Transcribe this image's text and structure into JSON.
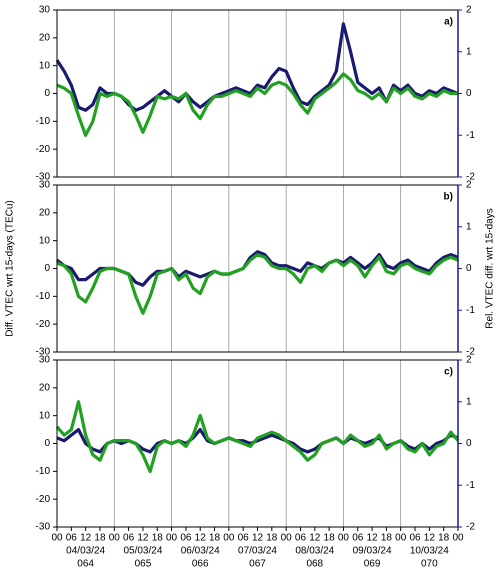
{
  "chart_data": [
    {
      "type": "line",
      "panel_label": "a)",
      "x": [
        0,
        3,
        6,
        9,
        12,
        15,
        18,
        21,
        24,
        27,
        30,
        33,
        36,
        39,
        42,
        45,
        48,
        51,
        54,
        57,
        60,
        63,
        66,
        69,
        72,
        75,
        78,
        81,
        84,
        87,
        90,
        93,
        96,
        99,
        102,
        105,
        108,
        111,
        114,
        117,
        120,
        123,
        126,
        129,
        132,
        135,
        138,
        141,
        144,
        147,
        150,
        153,
        156,
        159,
        162,
        165,
        168
      ],
      "series": [
        {
          "name": "VTEC diff",
          "color": "#1a1a6e",
          "values": [
            12,
            8,
            3,
            -5,
            -6,
            -4,
            2,
            0,
            0,
            -1,
            -4,
            -6,
            -5,
            -3,
            -1,
            1,
            -1,
            -3,
            0,
            -3,
            -5,
            -3,
            -1,
            0,
            1,
            2,
            1,
            0,
            3,
            2,
            6,
            9,
            8,
            2,
            -3,
            -4,
            -1,
            1,
            3,
            8,
            25,
            15,
            4,
            2,
            0,
            2,
            -3,
            3,
            1,
            3,
            0,
            -1,
            1,
            0,
            2,
            1,
            0
          ]
        },
        {
          "name": "Rel. VTEC diff",
          "color": "#22a022",
          "axis": "y2",
          "values": [
            0.2,
            0.13,
            0,
            -0.53,
            -1,
            -0.67,
            0,
            -0.07,
            0,
            -0.07,
            -0.2,
            -0.53,
            -0.93,
            -0.53,
            -0.07,
            -0.13,
            -0.07,
            -0.13,
            0,
            -0.4,
            -0.6,
            -0.27,
            -0.07,
            -0.07,
            0,
            0.07,
            0,
            -0.07,
            0.13,
            0,
            0.2,
            0.27,
            0.2,
            0,
            -0.27,
            -0.47,
            -0.13,
            0,
            0.13,
            0.27,
            0.47,
            0.33,
            0.07,
            0,
            -0.13,
            0,
            -0.2,
            0.13,
            0,
            0.13,
            -0.07,
            -0.13,
            0,
            -0.07,
            0.07,
            0,
            0
          ]
        }
      ],
      "ylim": [
        -30,
        30
      ],
      "yticks": [
        -30,
        -20,
        -10,
        0,
        10,
        20,
        30
      ],
      "y2lim": [
        -2,
        2
      ],
      "y2ticks": [
        -2,
        -1,
        0,
        1,
        2
      ],
      "xlim": [
        0,
        168
      ],
      "day_lines": [
        24,
        48,
        72,
        96,
        120,
        144
      ]
    },
    {
      "type": "line",
      "panel_label": "b)",
      "ylabel": "Diff. VTEC wrt 15-days (TECu)",
      "y2label": "Rel. VTEC diff. wrt 15-days",
      "x": [
        0,
        3,
        6,
        9,
        12,
        15,
        18,
        21,
        24,
        27,
        30,
        33,
        36,
        39,
        42,
        45,
        48,
        51,
        54,
        57,
        60,
        63,
        66,
        69,
        72,
        75,
        78,
        81,
        84,
        87,
        90,
        93,
        96,
        99,
        102,
        105,
        108,
        111,
        114,
        117,
        120,
        123,
        126,
        129,
        132,
        135,
        138,
        141,
        144,
        147,
        150,
        153,
        156,
        159,
        162,
        165,
        168
      ],
      "series": [
        {
          "name": "VTEC diff",
          "color": "#1a1a6e",
          "values": [
            3,
            1,
            0,
            -4,
            -4,
            -2,
            0,
            0,
            0,
            -1,
            -2,
            -5,
            -6,
            -3,
            -1,
            -1,
            0,
            -3,
            -1,
            -2,
            -3,
            -2,
            -1,
            -2,
            -2,
            -1,
            0,
            4,
            6,
            5,
            2,
            1,
            1,
            0,
            -1,
            2,
            1,
            0,
            2,
            3,
            2,
            4,
            2,
            0,
            2,
            5,
            1,
            0,
            2,
            3,
            1,
            0,
            -1,
            2,
            4,
            5,
            4
          ]
        },
        {
          "name": "Rel. VTEC diff",
          "color": "#22a022",
          "axis": "y2",
          "values": [
            0.13,
            0.07,
            -0.13,
            -0.67,
            -0.8,
            -0.47,
            -0.07,
            0,
            0,
            -0.07,
            -0.13,
            -0.67,
            -1.07,
            -0.67,
            -0.13,
            -0.07,
            0,
            -0.27,
            -0.13,
            -0.47,
            -0.6,
            -0.2,
            -0.07,
            -0.13,
            -0.13,
            -0.07,
            0,
            0.2,
            0.33,
            0.27,
            0.07,
            0,
            0,
            -0.13,
            -0.33,
            0,
            0.07,
            -0.07,
            0.13,
            0.2,
            0.07,
            0.2,
            0.07,
            -0.2,
            0.07,
            0.27,
            -0.07,
            -0.13,
            0.07,
            0.13,
            0,
            -0.07,
            -0.13,
            0.07,
            0.2,
            0.27,
            0.2
          ]
        }
      ],
      "ylim": [
        -30,
        30
      ],
      "yticks": [
        -30,
        -20,
        -10,
        0,
        10,
        20,
        30
      ],
      "y2lim": [
        -2,
        2
      ],
      "y2ticks": [
        -2,
        -1,
        0,
        1,
        2
      ],
      "xlim": [
        0,
        168
      ],
      "day_lines": [
        24,
        48,
        72,
        96,
        120,
        144
      ]
    },
    {
      "type": "line",
      "panel_label": "c)",
      "x": [
        0,
        3,
        6,
        9,
        12,
        15,
        18,
        21,
        24,
        27,
        30,
        33,
        36,
        39,
        42,
        45,
        48,
        51,
        54,
        57,
        60,
        63,
        66,
        69,
        72,
        75,
        78,
        81,
        84,
        87,
        90,
        93,
        96,
        99,
        102,
        105,
        108,
        111,
        114,
        117,
        120,
        123,
        126,
        129,
        132,
        135,
        138,
        141,
        144,
        147,
        150,
        153,
        156,
        159,
        162,
        165,
        168
      ],
      "series": [
        {
          "name": "VTEC diff",
          "color": "#1a1a6e",
          "values": [
            2,
            1,
            3,
            5,
            0,
            -2,
            -3,
            0,
            1,
            0,
            1,
            0,
            -2,
            -3,
            0,
            1,
            0,
            1,
            0,
            2,
            5,
            1,
            0,
            1,
            2,
            1,
            1,
            0,
            1,
            2,
            3,
            2,
            1,
            0,
            -2,
            -3,
            -2,
            0,
            1,
            2,
            0,
            2,
            1,
            0,
            1,
            2,
            -1,
            0,
            1,
            -1,
            -2,
            0,
            -2,
            0,
            1,
            3,
            2
          ]
        },
        {
          "name": "Rel. VTEC diff",
          "color": "#22a022",
          "axis": "y2",
          "values": [
            0.4,
            0.2,
            0.33,
            1,
            0.2,
            -0.27,
            -0.4,
            0,
            0.07,
            0.07,
            0.07,
            0,
            -0.27,
            -0.67,
            -0.07,
            0.07,
            0,
            0.07,
            -0.07,
            0.2,
            0.67,
            0.13,
            0,
            0.07,
            0.13,
            0.07,
            0,
            -0.07,
            0.13,
            0.2,
            0.27,
            0.2,
            0.07,
            -0.07,
            -0.2,
            -0.4,
            -0.27,
            0,
            0.07,
            0.13,
            0,
            0.2,
            0.07,
            -0.07,
            0,
            0.2,
            -0.13,
            0,
            0.07,
            -0.13,
            -0.2,
            0,
            -0.27,
            -0.07,
            0,
            0.27,
            0.07
          ]
        }
      ],
      "ylim": [
        -30,
        30
      ],
      "yticks": [
        -30,
        -20,
        -10,
        0,
        10,
        20,
        30
      ],
      "y2lim": [
        -2,
        2
      ],
      "y2ticks": [
        -2,
        -1,
        0,
        1,
        2
      ],
      "xlim": [
        0,
        168
      ],
      "day_lines": [
        24,
        48,
        72,
        96,
        120,
        144
      ],
      "xticks": [
        {
          "value": 0,
          "label": "00"
        },
        {
          "value": 6,
          "label": "06"
        },
        12,
        18,
        {
          "value": 24,
          "label": "00"
        },
        {
          "value": 30,
          "label": "06"
        },
        {
          "value": 36,
          "label": "12"
        },
        {
          "value": 42,
          "label": "18"
        },
        {
          "value": 48,
          "label": "00"
        },
        {
          "value": 54,
          "label": "06"
        },
        {
          "value": 60,
          "label": "12"
        },
        {
          "value": 66,
          "label": "18"
        },
        {
          "value": 72,
          "label": "00"
        },
        {
          "value": 78,
          "label": "06"
        },
        {
          "value": 84,
          "label": "12"
        },
        {
          "value": 90,
          "label": "18"
        },
        {
          "value": 96,
          "label": "00"
        },
        {
          "value": 102,
          "label": "06"
        },
        {
          "value": 108,
          "label": "12"
        },
        {
          "value": 114,
          "label": "18"
        },
        {
          "value": 120,
          "label": "00"
        },
        {
          "value": 126,
          "label": "06"
        },
        {
          "value": 132,
          "label": "12"
        },
        {
          "value": 138,
          "label": "18"
        },
        {
          "value": 144,
          "label": "00"
        },
        {
          "value": 150,
          "label": "06"
        },
        {
          "value": 156,
          "label": "12"
        },
        {
          "value": 162,
          "label": "18"
        },
        {
          "value": 168,
          "label": "00"
        }
      ],
      "day_labels": [
        "04/03/24",
        "05/03/24",
        "06/03/24",
        "07/03/24",
        "08/03/24",
        "09/03/24",
        "10/03/24"
      ],
      "doy_labels": [
        "064",
        "065",
        "066",
        "067",
        "068",
        "069",
        "070"
      ]
    }
  ]
}
